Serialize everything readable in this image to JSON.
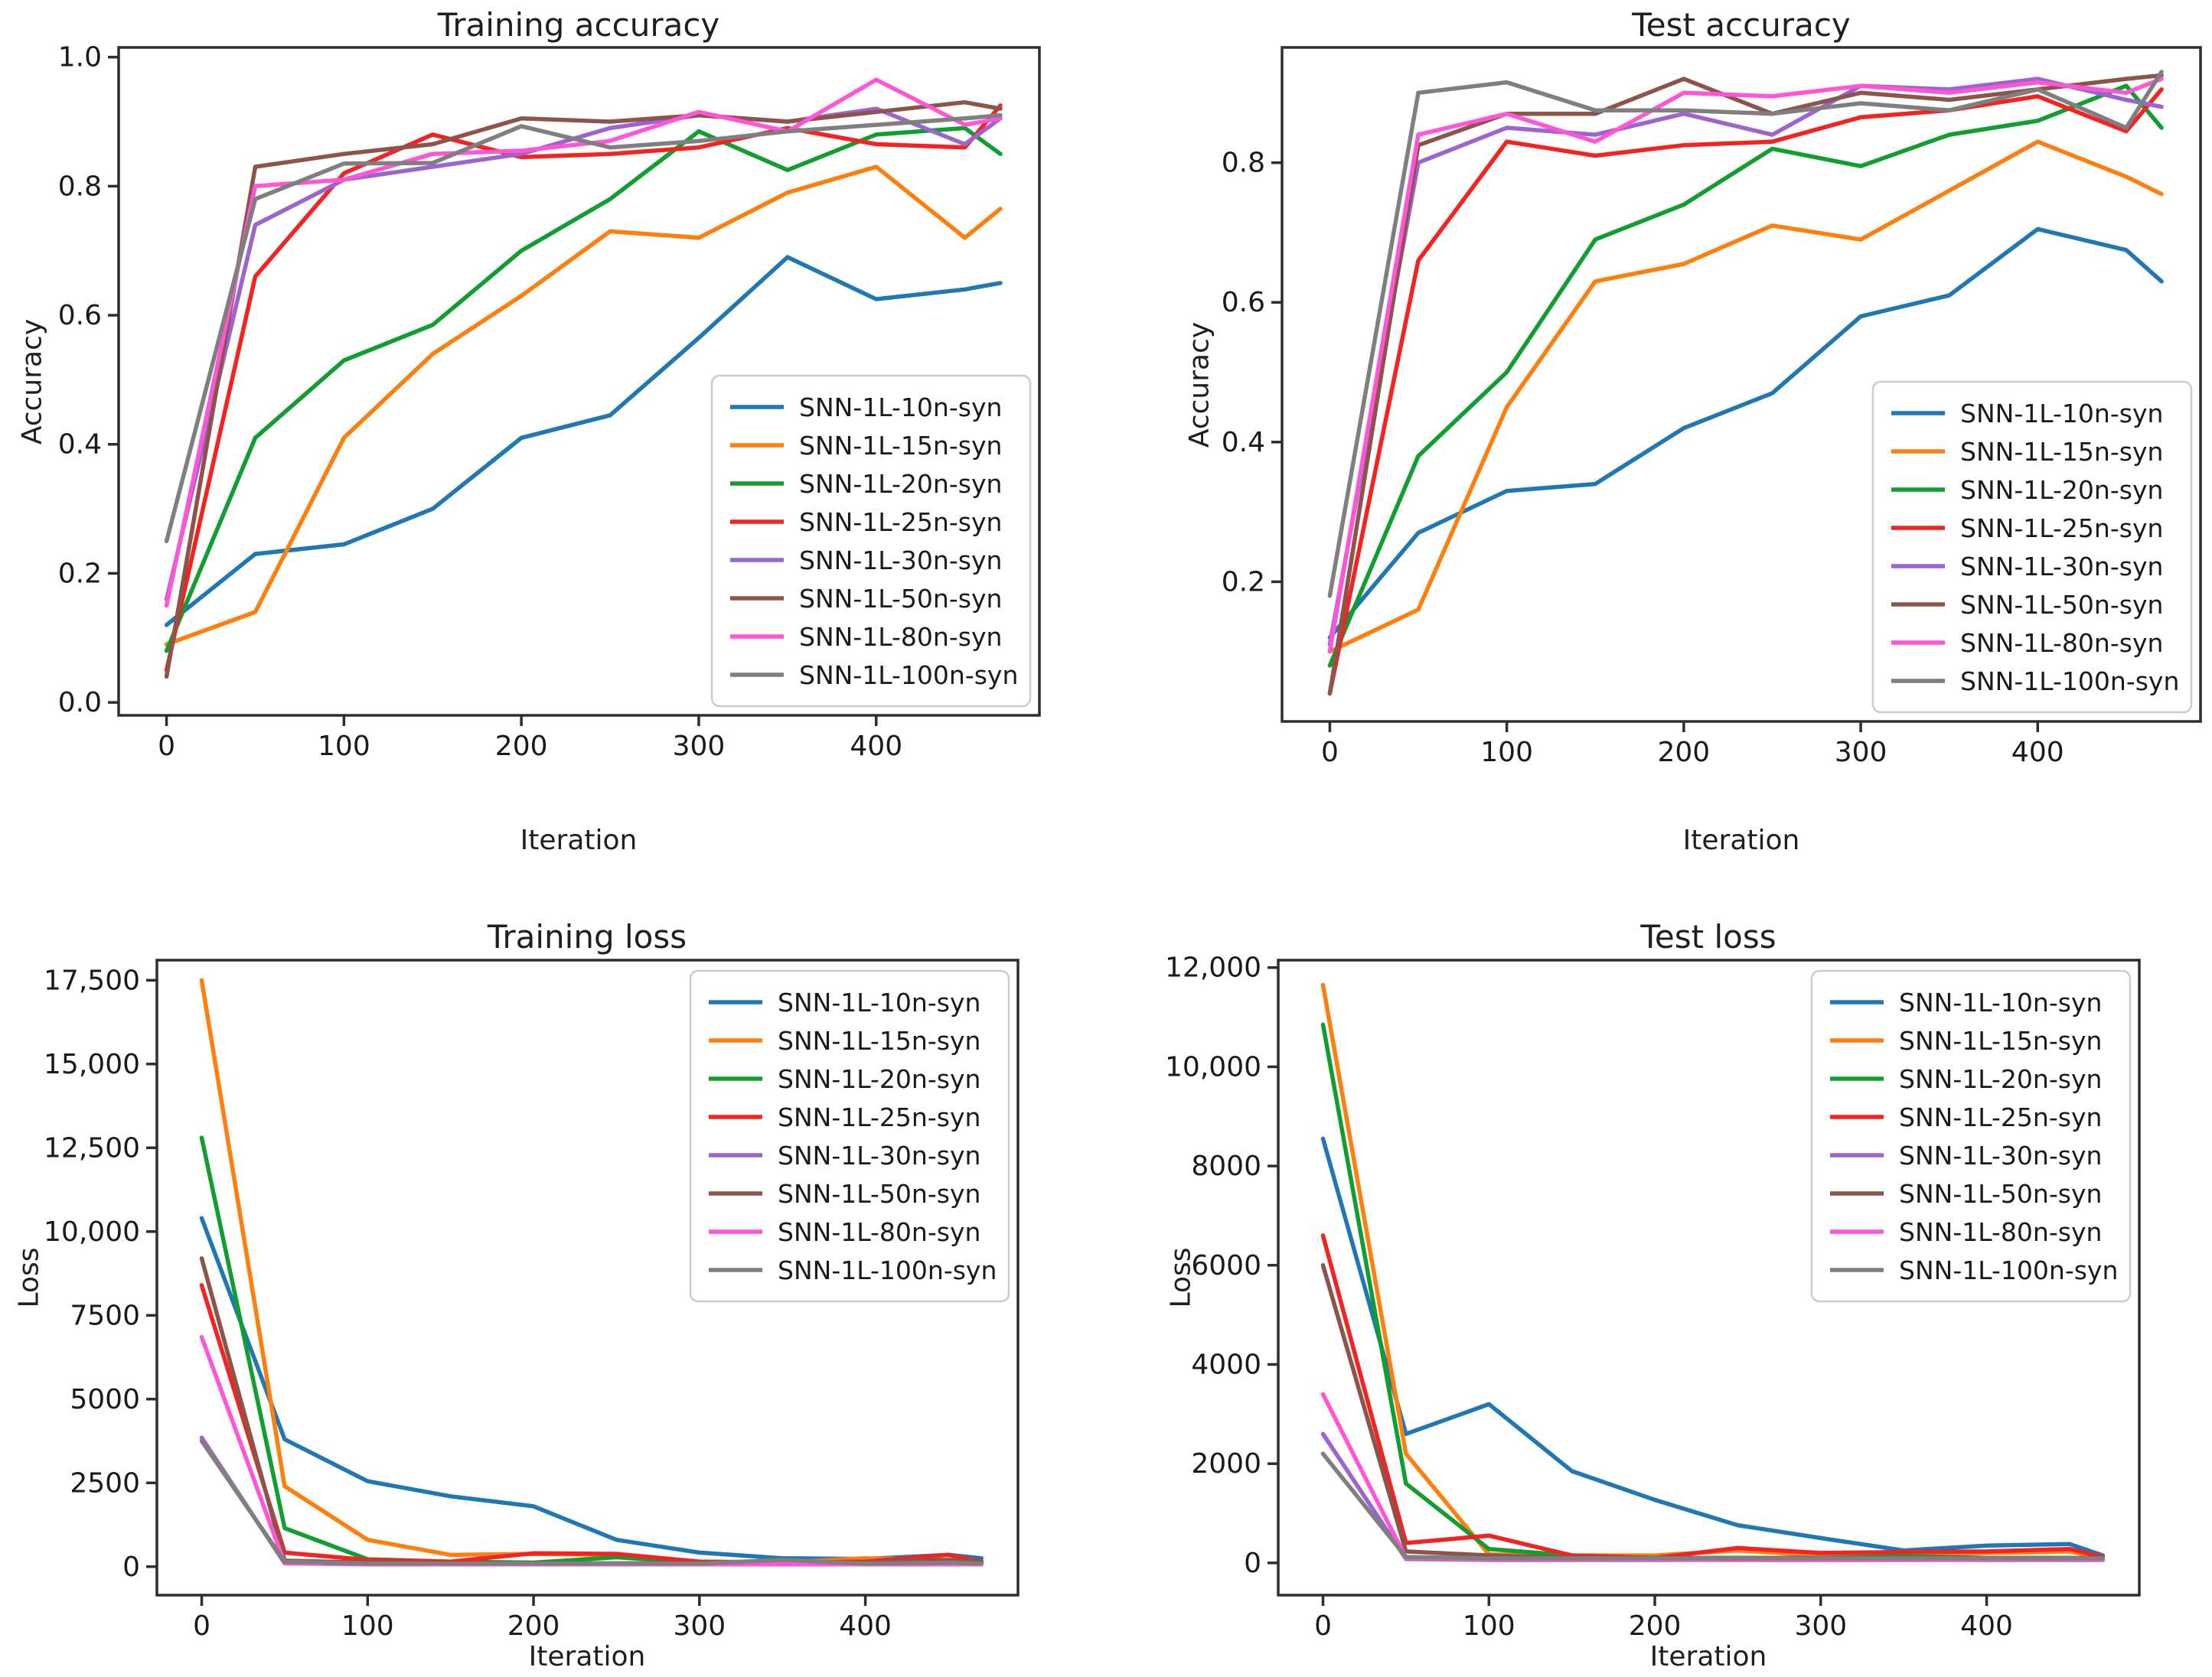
{
  "figure": {
    "background": "#ffffff",
    "text_color": "#1a1a1a",
    "spine_color": "#2e2e2e",
    "legend_border_color": "#cccccc"
  },
  "chart_data": [
    {
      "type": "line",
      "title": "Training accuracy",
      "xlabel": "Iteration",
      "ylabel": "Accuracy",
      "grid": false,
      "legend_position": "lower-right",
      "x": [
        0,
        50,
        100,
        150,
        200,
        250,
        300,
        350,
        400,
        450,
        470
      ],
      "xlim": [
        -27,
        492
      ],
      "ylim": [
        -0.02,
        1.015
      ],
      "xticks": [
        0,
        100,
        200,
        300,
        400
      ],
      "xtick_labels": [
        "0",
        "100",
        "200",
        "300",
        "400"
      ],
      "yticks": [
        0.0,
        0.2,
        0.4,
        0.6,
        0.8,
        1.0
      ],
      "ytick_labels": [
        "0.0",
        "0.2",
        "0.4",
        "0.6",
        "0.8",
        "1.0"
      ],
      "series": [
        {
          "name": "SNN-1L-10n-syn",
          "color": "#1f77b4",
          "values": [
            0.12,
            0.23,
            0.245,
            0.3,
            0.41,
            0.445,
            0.565,
            0.69,
            0.625,
            0.64,
            0.65
          ]
        },
        {
          "name": "SNN-1L-15n-syn",
          "color": "#ff7f0e",
          "values": [
            0.09,
            0.14,
            0.41,
            0.54,
            0.63,
            0.73,
            0.72,
            0.79,
            0.83,
            0.72,
            0.765
          ]
        },
        {
          "name": "SNN-1L-20n-syn",
          "color": "#109e30",
          "values": [
            0.08,
            0.41,
            0.53,
            0.585,
            0.7,
            0.78,
            0.885,
            0.825,
            0.88,
            0.89,
            0.85
          ]
        },
        {
          "name": "SNN-1L-25n-syn",
          "color": "#f52222",
          "values": [
            0.05,
            0.66,
            0.82,
            0.88,
            0.845,
            0.85,
            0.86,
            0.89,
            0.865,
            0.86,
            0.925
          ]
        },
        {
          "name": "SNN-1L-30n-syn",
          "color": "#9c64d0",
          "values": [
            0.16,
            0.74,
            0.81,
            0.83,
            0.85,
            0.89,
            0.91,
            0.9,
            0.92,
            0.865,
            0.905
          ]
        },
        {
          "name": "SNN-1L-50n-syn",
          "color": "#8c544a",
          "values": [
            0.04,
            0.83,
            0.85,
            0.865,
            0.905,
            0.9,
            0.91,
            0.9,
            0.915,
            0.93,
            0.92
          ]
        },
        {
          "name": "SNN-1L-80n-syn",
          "color": "#ff55d6",
          "values": [
            0.15,
            0.8,
            0.81,
            0.85,
            0.855,
            0.87,
            0.915,
            0.885,
            0.965,
            0.895,
            0.905
          ]
        },
        {
          "name": "SNN-1L-100n-syn",
          "color": "#7f7f7f",
          "values": [
            0.25,
            0.78,
            0.835,
            0.836,
            0.893,
            0.86,
            0.87,
            0.885,
            0.895,
            0.905,
            0.91
          ]
        }
      ]
    },
    {
      "type": "line",
      "title": "Test accuracy",
      "xlabel": "Iteration",
      "ylabel": "Accuracy",
      "grid": false,
      "legend_position": "lower-right",
      "x": [
        0,
        50,
        100,
        150,
        200,
        250,
        300,
        350,
        400,
        450,
        470
      ],
      "xlim": [
        -27,
        492
      ],
      "ylim": [
        0.0,
        0.965
      ],
      "xticks": [
        0,
        100,
        200,
        300,
        400
      ],
      "xtick_labels": [
        "0",
        "100",
        "200",
        "300",
        "400"
      ],
      "yticks": [
        0.2,
        0.4,
        0.6,
        0.8
      ],
      "ytick_labels": [
        "0.2",
        "0.4",
        "0.6",
        "0.8"
      ],
      "series": [
        {
          "name": "SNN-1L-10n-syn",
          "color": "#1f77b4",
          "values": [
            0.12,
            0.27,
            0.33,
            0.34,
            0.42,
            0.47,
            0.58,
            0.61,
            0.705,
            0.675,
            0.63
          ]
        },
        {
          "name": "SNN-1L-15n-syn",
          "color": "#ff7f0e",
          "values": [
            0.1,
            0.16,
            0.45,
            0.63,
            0.655,
            0.71,
            0.69,
            0.76,
            0.83,
            0.78,
            0.755
          ]
        },
        {
          "name": "SNN-1L-20n-syn",
          "color": "#109e30",
          "values": [
            0.08,
            0.38,
            0.5,
            0.69,
            0.74,
            0.82,
            0.795,
            0.84,
            0.86,
            0.91,
            0.85
          ]
        },
        {
          "name": "SNN-1L-25n-syn",
          "color": "#f52222",
          "values": [
            0.04,
            0.66,
            0.83,
            0.81,
            0.825,
            0.83,
            0.865,
            0.875,
            0.895,
            0.845,
            0.905
          ]
        },
        {
          "name": "SNN-1L-30n-syn",
          "color": "#9c64d0",
          "values": [
            0.11,
            0.8,
            0.85,
            0.84,
            0.87,
            0.84,
            0.91,
            0.905,
            0.92,
            0.89,
            0.88
          ]
        },
        {
          "name": "SNN-1L-50n-syn",
          "color": "#8c544a",
          "values": [
            0.04,
            0.825,
            0.87,
            0.87,
            0.92,
            0.87,
            0.9,
            0.89,
            0.905,
            0.92,
            0.925
          ]
        },
        {
          "name": "SNN-1L-80n-syn",
          "color": "#ff55d6",
          "values": [
            0.1,
            0.84,
            0.87,
            0.83,
            0.9,
            0.895,
            0.91,
            0.9,
            0.915,
            0.9,
            0.92
          ]
        },
        {
          "name": "SNN-1L-100n-syn",
          "color": "#7f7f7f",
          "values": [
            0.18,
            0.9,
            0.915,
            0.875,
            0.875,
            0.87,
            0.885,
            0.875,
            0.905,
            0.85,
            0.93
          ]
        }
      ]
    },
    {
      "type": "line",
      "title": "Training loss",
      "xlabel": "Iteration",
      "ylabel": "Loss",
      "grid": false,
      "legend_position": "upper-right",
      "x": [
        0,
        50,
        100,
        150,
        200,
        250,
        300,
        350,
        400,
        450,
        470
      ],
      "xlim": [
        -27,
        492
      ],
      "ylim": [
        -850,
        18100
      ],
      "xticks": [
        0,
        100,
        200,
        300,
        400
      ],
      "xtick_labels": [
        "0",
        "100",
        "200",
        "300",
        "400"
      ],
      "yticks": [
        0,
        2500,
        5000,
        7500,
        10000,
        12500,
        15000,
        17500
      ],
      "ytick_labels": [
        "0",
        "2500",
        "5000",
        "7500",
        "10,000",
        "12,500",
        "15,000",
        "17,500"
      ],
      "series": [
        {
          "name": "SNN-1L-10n-syn",
          "color": "#1f77b4",
          "values": [
            10400,
            3800,
            2550,
            2100,
            1800,
            800,
            420,
            250,
            230,
            350,
            250
          ]
        },
        {
          "name": "SNN-1L-15n-syn",
          "color": "#ff7f0e",
          "values": [
            17500,
            2400,
            800,
            350,
            380,
            350,
            150,
            120,
            250,
            200,
            150
          ]
        },
        {
          "name": "SNN-1L-20n-syn",
          "color": "#109e30",
          "values": [
            12800,
            1150,
            220,
            150,
            120,
            280,
            120,
            100,
            120,
            100,
            100
          ]
        },
        {
          "name": "SNN-1L-25n-syn",
          "color": "#f52222",
          "values": [
            8400,
            420,
            200,
            150,
            400,
            380,
            150,
            130,
            150,
            350,
            150
          ]
        },
        {
          "name": "SNN-1L-30n-syn",
          "color": "#9c64d0",
          "values": [
            3850,
            100,
            80,
            80,
            80,
            80,
            80,
            80,
            80,
            80,
            80
          ]
        },
        {
          "name": "SNN-1L-50n-syn",
          "color": "#8c544a",
          "values": [
            9200,
            180,
            120,
            100,
            100,
            100,
            100,
            100,
            120,
            200,
            150
          ]
        },
        {
          "name": "SNN-1L-80n-syn",
          "color": "#ff55d6",
          "values": [
            6850,
            100,
            70,
            70,
            70,
            70,
            70,
            70,
            70,
            70,
            70
          ]
        },
        {
          "name": "SNN-1L-100n-syn",
          "color": "#7f7f7f",
          "values": [
            3750,
            150,
            90,
            90,
            90,
            90,
            90,
            200,
            90,
            120,
            90
          ]
        }
      ]
    },
    {
      "type": "line",
      "title": "Test loss",
      "xlabel": "Iteration",
      "ylabel": "Loss",
      "grid": false,
      "legend_position": "upper-right",
      "x": [
        0,
        50,
        100,
        150,
        200,
        250,
        300,
        350,
        400,
        450,
        470
      ],
      "xlim": [
        -27,
        492
      ],
      "ylim": [
        -650,
        12150
      ],
      "xticks": [
        0,
        100,
        200,
        300,
        400
      ],
      "xtick_labels": [
        "0",
        "100",
        "200",
        "300",
        "400"
      ],
      "yticks": [
        0,
        2000,
        4000,
        6000,
        8000,
        10000,
        12000
      ],
      "ytick_labels": [
        "0",
        "2000",
        "4000",
        "6000",
        "8000",
        "10,000",
        "12,000"
      ],
      "series": [
        {
          "name": "SNN-1L-10n-syn",
          "color": "#1f77b4",
          "values": [
            8550,
            2600,
            3200,
            1850,
            1270,
            760,
            500,
            250,
            350,
            380,
            150
          ]
        },
        {
          "name": "SNN-1L-15n-syn",
          "color": "#ff7f0e",
          "values": [
            11650,
            2200,
            170,
            150,
            150,
            250,
            150,
            150,
            200,
            230,
            100
          ]
        },
        {
          "name": "SNN-1L-20n-syn",
          "color": "#109e30",
          "values": [
            10850,
            1600,
            280,
            150,
            100,
            100,
            100,
            140,
            100,
            100,
            80
          ]
        },
        {
          "name": "SNN-1L-25n-syn",
          "color": "#f52222",
          "values": [
            6600,
            400,
            550,
            150,
            100,
            300,
            200,
            220,
            230,
            280,
            120
          ]
        },
        {
          "name": "SNN-1L-30n-syn",
          "color": "#9c64d0",
          "values": [
            2600,
            80,
            60,
            60,
            60,
            60,
            60,
            60,
            60,
            60,
            60
          ]
        },
        {
          "name": "SNN-1L-50n-syn",
          "color": "#8c544a",
          "values": [
            6000,
            230,
            150,
            100,
            100,
            100,
            100,
            100,
            100,
            100,
            100
          ]
        },
        {
          "name": "SNN-1L-80n-syn",
          "color": "#ff55d6",
          "values": [
            3400,
            100,
            70,
            70,
            70,
            60,
            60,
            60,
            70,
            70,
            70
          ]
        },
        {
          "name": "SNN-1L-100n-syn",
          "color": "#7f7f7f",
          "values": [
            2200,
            120,
            90,
            90,
            90,
            90,
            90,
            90,
            90,
            90,
            90
          ]
        }
      ]
    }
  ]
}
